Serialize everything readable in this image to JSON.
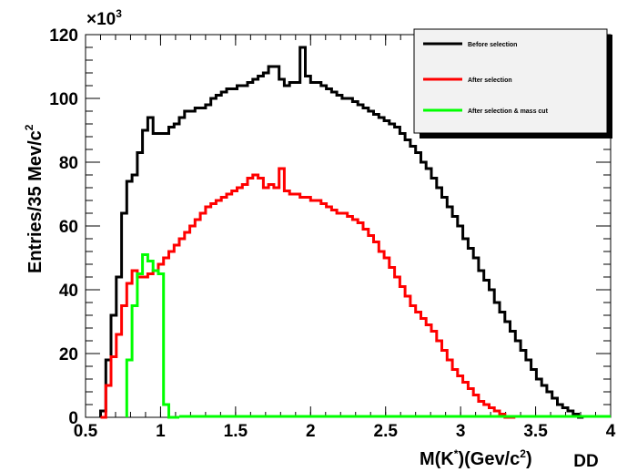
{
  "chart_data": {
    "type": "line",
    "step": true,
    "xlabel": "M(K*)(Gev/c²)",
    "xlabel_main": "M(K",
    "xlabel_sup1": "*",
    "xlabel_mid": ")(Gev/c",
    "xlabel_sup2": "2",
    "xlabel_end": ")",
    "xlabel_suffix": "DD",
    "ylabel": "Entries/35 Mev/c²",
    "ylabel_main": "Entries/35 Mev/c",
    "ylabel_sup": "2",
    "y_multiplier": "×10³",
    "y_multiplier_base": "×10",
    "y_multiplier_exp": "3",
    "xlim": [
      0.5,
      4.0
    ],
    "ylim": [
      0,
      120
    ],
    "xticks": [
      "0.5",
      "1",
      "1.5",
      "2",
      "2.5",
      "3",
      "3.5",
      "4"
    ],
    "yticks": [
      "0",
      "20",
      "40",
      "60",
      "80",
      "100",
      "120"
    ],
    "legend_position": "top-right",
    "grid": false,
    "bin_width": 0.035,
    "x_start": 0.6,
    "series": [
      {
        "name": "Before selection",
        "color": "#000000",
        "x_start": 0.6,
        "values": [
          2,
          18,
          32,
          44,
          64,
          74,
          76,
          83,
          90,
          94,
          89,
          89,
          89,
          91,
          92,
          94,
          96,
          96,
          97,
          97,
          98,
          100,
          101,
          102,
          103,
          103,
          104,
          104,
          105,
          106,
          107,
          108,
          110,
          110,
          106,
          104,
          105,
          105,
          116,
          107,
          105,
          105,
          104,
          103,
          102,
          101,
          100,
          100,
          99,
          98,
          97,
          96,
          95,
          94,
          93,
          92,
          91,
          89,
          87,
          85,
          83,
          80,
          78,
          75,
          72,
          69,
          66,
          63,
          60,
          56,
          53,
          50,
          46,
          43,
          40,
          36,
          33,
          30,
          27,
          24,
          21,
          18,
          15,
          12,
          10,
          8,
          6,
          4,
          3,
          2,
          1,
          0
        ]
      },
      {
        "name": "After selection",
        "color": "#ff0000",
        "x_start": 0.6,
        "values": [
          0,
          10,
          19,
          26,
          35,
          42,
          46,
          44,
          44,
          45,
          46,
          48,
          50,
          52,
          54,
          56,
          58,
          60,
          62,
          64,
          66,
          67,
          68,
          69,
          70,
          71,
          72,
          73,
          75,
          76,
          75,
          72,
          73,
          72,
          78,
          71,
          70,
          70,
          69,
          69,
          68,
          68,
          67,
          66,
          65,
          64,
          64,
          63,
          62,
          61,
          59,
          57,
          55,
          52,
          50,
          47,
          44,
          41,
          38,
          35,
          33,
          31,
          29,
          27,
          24,
          21,
          18,
          15,
          13,
          11,
          9,
          7,
          5,
          4,
          3,
          2,
          1,
          0,
          0
        ]
      },
      {
        "name": "After selection & mass cut",
        "color": "#00ff00",
        "x_start": 0.775,
        "values": [
          18,
          35,
          45,
          51,
          49,
          46,
          45,
          4,
          0,
          0
        ]
      }
    ]
  }
}
